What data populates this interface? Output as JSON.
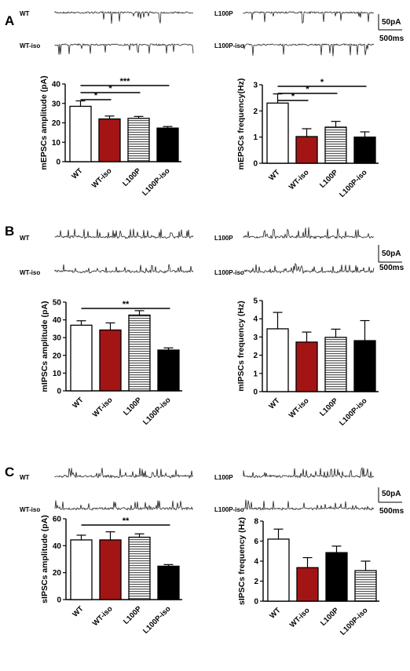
{
  "colors": {
    "wt": "#ffffff",
    "wt_iso": "#a31515",
    "l100p": "#e6e6e6",
    "l100p_iso": "#000000",
    "axis": "#000000",
    "trace": "#222222"
  },
  "panels": [
    {
      "letter": "A",
      "traces": {
        "left_top": "WT",
        "left_bottom": "WT-iso",
        "right_top": "L100P",
        "right_bottom": "L100P-iso",
        "scale_current": "50pA",
        "scale_time": "500ms"
      }
    },
    {
      "letter": "B",
      "traces": {
        "left_top": "WT",
        "left_bottom": "WT-iso",
        "right_top": "L100P",
        "right_bottom": "L100P-iso",
        "scale_current": "50pA",
        "scale_time": "500ms"
      }
    },
    {
      "letter": "C",
      "traces": {
        "left_top": "WT",
        "left_bottom": "WT-iso",
        "right_top": "L100P",
        "right_bottom": "L100P-iso",
        "scale_current": "50pA",
        "scale_time": "500ms"
      }
    }
  ],
  "chart_data": [
    {
      "type": "bar",
      "ylabel": "mEPSCs amplitude (pA)",
      "categories": [
        "WT",
        "WT-iso",
        "L100P",
        "L100P-iso"
      ],
      "values": [
        28.5,
        22,
        22.3,
        17.3
      ],
      "errors": [
        2.8,
        1.5,
        1.0,
        0.8
      ],
      "styles": [
        "wt",
        "wt_iso",
        "l100p",
        "l100p_iso"
      ],
      "ylim": [
        0,
        40
      ],
      "yticks": [
        0,
        10,
        20,
        30,
        40
      ],
      "significance": [
        {
          "from": 0,
          "to": 1,
          "label": "*"
        },
        {
          "from": 0,
          "to": 2,
          "label": "*"
        },
        {
          "from": 0,
          "to": 3,
          "label": "***"
        }
      ]
    },
    {
      "type": "bar",
      "ylabel": "mEPSCs frequency(Hz)",
      "categories": [
        "WT",
        "WT-iso",
        "L100P",
        "L100P-iso"
      ],
      "values": [
        2.3,
        1.02,
        1.38,
        1.0
      ],
      "errors": [
        0.35,
        0.3,
        0.22,
        0.2
      ],
      "styles": [
        "wt",
        "wt_iso",
        "l100p",
        "l100p_iso"
      ],
      "ylim": [
        0,
        3
      ],
      "yticks": [
        0,
        1,
        2,
        3
      ],
      "significance": [
        {
          "from": 0,
          "to": 1,
          "label": "*"
        },
        {
          "from": 0,
          "to": 2,
          "label": "*"
        },
        {
          "from": 0,
          "to": 3,
          "label": "*"
        }
      ]
    },
    {
      "type": "bar",
      "ylabel": "mIPSCs amplitude (pA)",
      "categories": [
        "WT",
        "WT-iso",
        "L100P",
        "L100P-iso"
      ],
      "values": [
        37,
        34.3,
        42.7,
        23
      ],
      "errors": [
        2.5,
        4.0,
        2.5,
        1.2
      ],
      "styles": [
        "wt",
        "wt_iso",
        "l100p",
        "l100p_iso"
      ],
      "ylim": [
        0,
        50
      ],
      "yticks": [
        0,
        10,
        20,
        30,
        40,
        50
      ],
      "significance": [
        {
          "from": 0,
          "to": 3,
          "label": "**"
        }
      ]
    },
    {
      "type": "bar",
      "ylabel": "mIPSCs frequency (Hz)",
      "categories": [
        "WT",
        "WT-iso",
        "L100P",
        "L100P-iso"
      ],
      "values": [
        3.45,
        2.72,
        2.98,
        2.8
      ],
      "errors": [
        0.9,
        0.55,
        0.45,
        1.1
      ],
      "styles": [
        "wt",
        "wt_iso",
        "l100p",
        "l100p_iso"
      ],
      "ylim": [
        0,
        5
      ],
      "yticks": [
        0,
        1,
        2,
        3,
        4,
        5
      ],
      "significance": []
    },
    {
      "type": "bar",
      "ylabel": "sIPSCs amplitude (pA)",
      "categories": [
        "WT",
        "WT-iso",
        "L100P",
        "L100P-iso"
      ],
      "values": [
        44.3,
        44.3,
        46.3,
        24.8
      ],
      "errors": [
        3.5,
        6.0,
        2.5,
        1.2
      ],
      "styles": [
        "wt",
        "wt_iso",
        "l100p",
        "l100p_iso"
      ],
      "ylim": [
        0,
        60
      ],
      "yticks": [
        0,
        20,
        40,
        60
      ],
      "significance": [
        {
          "from": 0,
          "to": 3,
          "label": "**"
        }
      ]
    },
    {
      "type": "bar",
      "ylabel": "sIPSCs frequency (Hz)",
      "categories": [
        "WT",
        "WT-iso",
        "L100P",
        "L100P-iso"
      ],
      "values": [
        6.2,
        3.35,
        4.85,
        3.05
      ],
      "errors": [
        1.0,
        1.0,
        0.65,
        0.95
      ],
      "styles": [
        "wt",
        "wt_iso",
        "l100p_iso",
        "l100p"
      ],
      "ylim": [
        0,
        8
      ],
      "yticks": [
        0,
        2,
        4,
        6,
        8
      ],
      "significance": []
    }
  ]
}
